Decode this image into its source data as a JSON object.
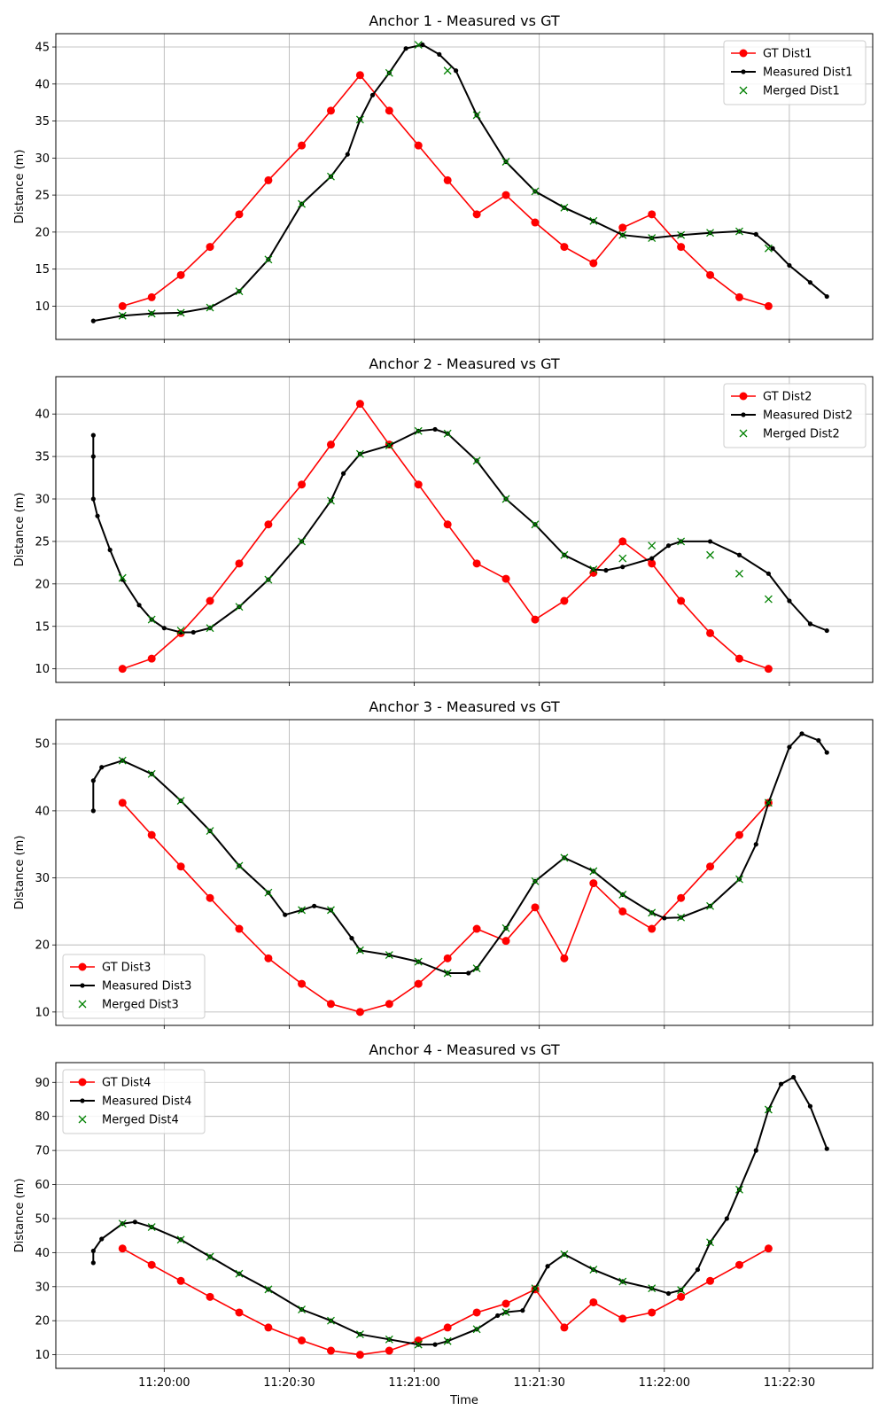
{
  "figure": {
    "xlabel": "Time",
    "x_tick_labels": [
      "11:20:00",
      "11:20:30",
      "11:21:00",
      "11:21:30",
      "11:22:00",
      "11:22:30"
    ]
  },
  "chart_data": [
    {
      "type": "line",
      "title": "Anchor 1 - Measured vs GT",
      "xlabel": "",
      "ylabel": "Distance (m)",
      "xlim_s": [
        -26,
        170
      ],
      "ylim": [
        5.5,
        46.8
      ],
      "y_ticks": [
        10,
        15,
        20,
        25,
        30,
        35,
        40,
        45
      ],
      "x_ticks_s": [
        0,
        30,
        60,
        90,
        120,
        150
      ],
      "grid": true,
      "legend": "top-right",
      "series": [
        {
          "name": "GT Dist1",
          "color": "#ff0000",
          "marker": "circle",
          "x": [
            -10,
            -3,
            4,
            11,
            18,
            25,
            33,
            40,
            47,
            54,
            61,
            68,
            75,
            82,
            89,
            96,
            103,
            110,
            117,
            124,
            131,
            138,
            145
          ],
          "y": [
            10,
            11.2,
            14.2,
            18,
            22.4,
            27,
            31.7,
            36.4,
            41.2,
            36.4,
            31.7,
            27,
            22.4,
            25,
            21.3,
            18,
            15.8,
            20.6,
            22.4,
            18,
            14.2,
            11.2,
            10
          ]
        },
        {
          "name": "Measured Dist1",
          "color": "#000000",
          "marker": "dot",
          "x": [
            -17,
            -10,
            -3,
            4,
            11,
            18,
            25,
            33,
            40,
            44,
            47,
            50,
            54,
            58,
            62,
            66,
            70,
            75,
            82,
            89,
            96,
            103,
            110,
            117,
            124,
            131,
            138,
            142,
            146,
            150,
            155,
            159
          ],
          "y": [
            8.0,
            8.7,
            9.0,
            9.1,
            9.8,
            12.0,
            16.3,
            23.8,
            27.5,
            30.5,
            35.2,
            38.5,
            41.5,
            44.8,
            45.3,
            44.0,
            41.8,
            35.8,
            29.5,
            25.5,
            23.3,
            21.5,
            19.6,
            19.2,
            19.6,
            19.9,
            20.1,
            19.7,
            17.8,
            15.5,
            13.2,
            11.3
          ]
        },
        {
          "name": "Merged Dist1",
          "color": "#008000",
          "marker": "x",
          "x": [
            -10,
            -3,
            4,
            11,
            18,
            25,
            33,
            40,
            47,
            54,
            61,
            68,
            75,
            82,
            89,
            96,
            103,
            110,
            117,
            124,
            131,
            138,
            145
          ],
          "y": [
            8.7,
            9.0,
            9.1,
            9.8,
            12.0,
            16.3,
            23.8,
            27.5,
            35.2,
            41.5,
            45.3,
            41.8,
            35.8,
            29.5,
            25.5,
            23.3,
            21.5,
            19.6,
            19.2,
            19.6,
            19.9,
            20.1,
            17.8
          ]
        }
      ]
    },
    {
      "type": "line",
      "title": "Anchor 2 - Measured vs GT",
      "xlabel": "",
      "ylabel": "Distance (m)",
      "xlim_s": [
        -26,
        170
      ],
      "ylim": [
        8.4,
        44.4
      ],
      "y_ticks": [
        10,
        15,
        20,
        25,
        30,
        35,
        40
      ],
      "x_ticks_s": [
        0,
        30,
        60,
        90,
        120,
        150
      ],
      "grid": true,
      "legend": "top-right",
      "series": [
        {
          "name": "GT Dist2",
          "color": "#ff0000",
          "marker": "circle",
          "x": [
            -10,
            -3,
            4,
            11,
            18,
            25,
            33,
            40,
            47,
            54,
            61,
            68,
            75,
            82,
            89,
            96,
            103,
            110,
            117,
            124,
            131,
            138,
            145
          ],
          "y": [
            10,
            11.2,
            14.2,
            18,
            22.4,
            27,
            31.7,
            36.4,
            41.2,
            36.4,
            31.7,
            27,
            22.4,
            20.6,
            15.8,
            18,
            21.3,
            25,
            22.4,
            18,
            14.2,
            11.2,
            10
          ]
        },
        {
          "name": "Measured Dist2",
          "color": "#000000",
          "marker": "dot",
          "x": [
            -17,
            -17,
            -17,
            -16,
            -13,
            -10,
            -6,
            -3,
            0,
            4,
            7,
            11,
            18,
            25,
            33,
            40,
            43,
            47,
            54,
            61,
            65,
            68,
            75,
            82,
            89,
            96,
            103,
            106,
            110,
            117,
            121,
            124,
            131,
            138,
            145,
            150,
            155,
            159
          ],
          "y": [
            37.5,
            35.0,
            30.0,
            28.0,
            24.0,
            20.5,
            17.5,
            15.8,
            14.8,
            14.3,
            14.3,
            14.8,
            17.3,
            20.5,
            25.0,
            29.8,
            33.0,
            35.3,
            36.3,
            38.0,
            38.2,
            37.7,
            34.5,
            30.0,
            27.0,
            23.4,
            21.7,
            21.6,
            22.0,
            23.0,
            24.5,
            25.0,
            25.0,
            23.4,
            21.2,
            18.0,
            15.3,
            14.5
          ]
        },
        {
          "name": "Merged Dist2",
          "color": "#008000",
          "marker": "x",
          "x": [
            -10,
            -3,
            4,
            11,
            18,
            25,
            33,
            40,
            47,
            54,
            61,
            68,
            75,
            82,
            89,
            96,
            103,
            110,
            117,
            124,
            131,
            138,
            145
          ],
          "y": [
            20.7,
            15.8,
            14.5,
            14.8,
            17.3,
            20.5,
            25.0,
            29.8,
            35.3,
            36.3,
            38.0,
            37.7,
            34.5,
            30.0,
            27.0,
            23.4,
            21.7,
            23.0,
            24.5,
            25.0,
            23.4,
            21.2,
            18.2
          ]
        }
      ]
    },
    {
      "type": "line",
      "title": "Anchor 3 - Measured vs GT",
      "xlabel": "",
      "ylabel": "Distance (m)",
      "xlim_s": [
        -26,
        170
      ],
      "ylim": [
        8.0,
        53.6
      ],
      "y_ticks": [
        10,
        20,
        30,
        40,
        50
      ],
      "x_ticks_s": [
        0,
        30,
        60,
        90,
        120,
        150
      ],
      "grid": true,
      "legend": "bottom-left",
      "series": [
        {
          "name": "GT Dist3",
          "color": "#ff0000",
          "marker": "circle",
          "x": [
            -10,
            -3,
            4,
            11,
            18,
            25,
            33,
            40,
            47,
            54,
            61,
            68,
            75,
            82,
            89,
            96,
            103,
            110,
            117,
            124,
            131,
            138,
            145
          ],
          "y": [
            41.2,
            36.4,
            31.7,
            27,
            22.4,
            18,
            14.2,
            11.2,
            10,
            11.2,
            14.2,
            18,
            22.4,
            20.6,
            25.6,
            18,
            29.2,
            25,
            22.4,
            27,
            31.7,
            36.4,
            41.2
          ]
        },
        {
          "name": "Measured Dist3",
          "color": "#000000",
          "marker": "dot",
          "x": [
            -17,
            -17,
            -15,
            -10,
            -3,
            4,
            11,
            18,
            25,
            29,
            33,
            36,
            40,
            45,
            47,
            54,
            61,
            68,
            73,
            75,
            82,
            89,
            96,
            103,
            110,
            117,
            120,
            124,
            131,
            138,
            142,
            145,
            150,
            153,
            157,
            159
          ],
          "y": [
            40.0,
            44.5,
            46.5,
            47.5,
            45.5,
            41.5,
            37.0,
            31.8,
            27.8,
            24.5,
            25.2,
            25.8,
            25.2,
            21.0,
            19.2,
            18.5,
            17.5,
            15.8,
            15.8,
            16.5,
            22.5,
            29.5,
            33.0,
            31.0,
            27.5,
            24.8,
            24.0,
            24.1,
            25.8,
            29.8,
            35.0,
            41.2,
            49.5,
            51.5,
            50.5,
            48.7
          ]
        },
        {
          "name": "Merged Dist3",
          "color": "#008000",
          "marker": "x",
          "x": [
            -10,
            -3,
            4,
            11,
            18,
            25,
            33,
            40,
            47,
            54,
            61,
            68,
            75,
            82,
            89,
            96,
            103,
            110,
            117,
            124,
            131,
            138,
            145
          ],
          "y": [
            47.5,
            45.5,
            41.5,
            37.0,
            31.8,
            27.8,
            25.2,
            25.2,
            19.2,
            18.5,
            17.5,
            15.8,
            16.5,
            22.5,
            29.5,
            33.0,
            31.0,
            27.5,
            24.8,
            24.1,
            25.8,
            29.8,
            41.2
          ]
        }
      ]
    },
    {
      "type": "line",
      "title": "Anchor 4 - Measured vs GT",
      "xlabel": "Time",
      "ylabel": "Distance (m)",
      "xlim_s": [
        -26,
        170
      ],
      "ylim": [
        6.0,
        95.8
      ],
      "y_ticks": [
        10,
        20,
        30,
        40,
        50,
        60,
        70,
        80,
        90
      ],
      "x_ticks_s": [
        0,
        30,
        60,
        90,
        120,
        150
      ],
      "grid": true,
      "legend": "top-left",
      "series": [
        {
          "name": "GT Dist4",
          "color": "#ff0000",
          "marker": "circle",
          "x": [
            -10,
            -3,
            4,
            11,
            18,
            25,
            33,
            40,
            47,
            54,
            61,
            68,
            75,
            82,
            89,
            96,
            103,
            110,
            117,
            124,
            131,
            138,
            145
          ],
          "y": [
            41.2,
            36.4,
            31.7,
            27,
            22.4,
            18,
            14.2,
            11.2,
            10,
            11.2,
            14.2,
            18,
            22.4,
            25,
            29.2,
            18,
            25.4,
            20.6,
            22.4,
            27,
            31.7,
            36.4,
            41.2
          ]
        },
        {
          "name": "Measured Dist4",
          "color": "#000000",
          "marker": "dot",
          "x": [
            -17,
            -17,
            -15,
            -10,
            -7,
            -3,
            4,
            11,
            18,
            25,
            33,
            40,
            47,
            54,
            61,
            65,
            68,
            75,
            80,
            82,
            86,
            89,
            92,
            96,
            103,
            110,
            117,
            121,
            124,
            128,
            131,
            135,
            138,
            142,
            145,
            148,
            151,
            155,
            159
          ],
          "y": [
            37.0,
            40.5,
            44.0,
            48.5,
            49.0,
            47.5,
            43.8,
            38.8,
            33.8,
            29.2,
            23.3,
            20.0,
            16.0,
            14.5,
            13.0,
            13.0,
            14.0,
            17.5,
            21.5,
            22.5,
            23.0,
            29.5,
            36.0,
            39.5,
            35.0,
            31.5,
            29.5,
            28.0,
            29.0,
            35.0,
            43.0,
            50.0,
            58.5,
            70.0,
            82.0,
            89.5,
            91.5,
            83.0,
            70.5
          ]
        },
        {
          "name": "Merged Dist4",
          "color": "#008000",
          "marker": "x",
          "x": [
            -10,
            -3,
            4,
            11,
            18,
            25,
            33,
            40,
            47,
            54,
            61,
            68,
            75,
            82,
            89,
            96,
            103,
            110,
            117,
            124,
            131,
            138,
            145
          ],
          "y": [
            48.5,
            47.5,
            43.8,
            38.8,
            33.8,
            29.2,
            23.3,
            20.0,
            16.0,
            14.5,
            13.0,
            14.0,
            17.5,
            22.5,
            29.5,
            39.5,
            35.0,
            31.5,
            29.5,
            29.0,
            43.0,
            58.5,
            82.0
          ]
        }
      ]
    }
  ]
}
